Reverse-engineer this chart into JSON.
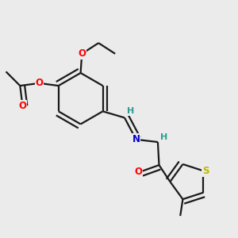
{
  "background_color": "#ebebeb",
  "bond_color": "#1a1a1a",
  "atom_colors": {
    "O": "#ff0000",
    "N": "#0000cc",
    "S": "#b8b800",
    "C": "#1a1a1a",
    "H": "#2a9d8f"
  },
  "lw": 1.6,
  "fontsize": 8.5
}
